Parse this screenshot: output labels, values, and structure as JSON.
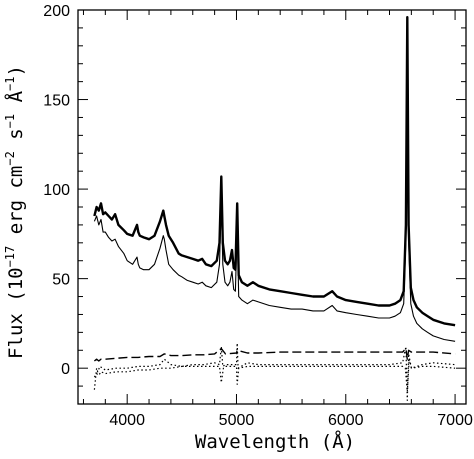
{
  "chart_data": {
    "type": "line",
    "xlabel": "Wavelength (Å)",
    "ylabel": "Flux (10",
    "ylabel_parts": [
      "Flux (10",
      "−17",
      " erg cm",
      "−2",
      " s",
      "−1",
      " Å",
      "−1",
      ")"
    ],
    "xlim": [
      3550,
      7100
    ],
    "ylim": [
      -20,
      200
    ],
    "xticks": [
      4000,
      5000,
      6000,
      7000
    ],
    "yticks": [
      0,
      50,
      100,
      150,
      200
    ],
    "grid": false,
    "series": [
      {
        "style": "solid-thick",
        "x": [
          3700,
          3720,
          3740,
          3760,
          3780,
          3800,
          3830,
          3860,
          3889,
          3920,
          3970,
          4000,
          4050,
          4090,
          4102,
          4115,
          4150,
          4200,
          4250,
          4300,
          4330,
          4340,
          4355,
          4380,
          4420,
          4471,
          4500,
          4550,
          4600,
          4650,
          4686,
          4720,
          4770,
          4820,
          4845,
          4861,
          4875,
          4895,
          4920,
          4940,
          4959,
          4975,
          4990,
          5007,
          5020,
          5050,
          5100,
          5150,
          5200,
          5300,
          5400,
          5500,
          5600,
          5700,
          5800,
          5876,
          5920,
          6000,
          6100,
          6200,
          6300,
          6400,
          6450,
          6500,
          6530,
          6550,
          6563,
          6575,
          6595,
          6620,
          6650,
          6700,
          6750,
          6800,
          6900,
          7000
        ],
        "y": [
          85,
          90,
          88,
          92,
          86,
          87,
          85,
          83,
          86,
          80,
          77,
          75,
          74,
          80,
          76,
          74,
          73,
          72,
          74,
          82,
          88,
          85,
          80,
          74,
          70,
          64,
          63,
          62,
          61,
          60,
          61,
          58,
          57,
          60,
          70,
          107,
          70,
          60,
          58,
          60,
          66,
          56,
          55,
          92,
          52,
          48,
          46,
          48,
          46,
          44,
          43,
          42,
          41,
          40,
          40,
          43,
          40,
          38,
          37,
          36,
          35,
          35,
          36,
          38,
          43,
          80,
          196,
          80,
          45,
          38,
          34,
          31,
          29,
          27,
          25,
          24
        ]
      },
      {
        "style": "solid-thin",
        "x": [
          3700,
          3720,
          3740,
          3760,
          3780,
          3800,
          3830,
          3860,
          3889,
          3920,
          3970,
          4000,
          4050,
          4090,
          4102,
          4115,
          4150,
          4200,
          4250,
          4300,
          4330,
          4340,
          4355,
          4380,
          4420,
          4471,
          4500,
          4550,
          4600,
          4650,
          4686,
          4720,
          4770,
          4820,
          4845,
          4861,
          4875,
          4895,
          4920,
          4940,
          4959,
          4975,
          4990,
          5007,
          5020,
          5050,
          5100,
          5150,
          5200,
          5300,
          5400,
          5500,
          5600,
          5700,
          5800,
          5876,
          5920,
          6000,
          6100,
          6200,
          6300,
          6400,
          6450,
          6500,
          6530,
          6550,
          6563,
          6575,
          6595,
          6620,
          6650,
          6700,
          6750,
          6800,
          6900,
          7000
        ],
        "y": [
          82,
          85,
          80,
          83,
          76,
          76,
          73,
          71,
          72,
          68,
          64,
          60,
          58,
          62,
          58,
          56,
          55,
          55,
          58,
          67,
          74,
          72,
          66,
          58,
          55,
          52,
          51,
          49,
          48,
          47,
          48,
          46,
          45,
          48,
          58,
          95,
          58,
          48,
          46,
          48,
          54,
          44,
          43,
          80,
          40,
          38,
          36,
          38,
          37,
          35,
          34,
          33,
          33,
          32,
          32,
          35,
          32,
          31,
          30,
          29,
          28,
          28,
          29,
          31,
          36,
          72,
          189,
          72,
          36,
          29,
          25,
          22,
          20,
          18,
          16,
          15
        ]
      },
      {
        "style": "dashed",
        "x": [
          3700,
          3720,
          3740,
          3760,
          3800,
          3900,
          4000,
          4100,
          4200,
          4300,
          4340,
          4400,
          4500,
          4600,
          4700,
          4800,
          4861,
          4900,
          5000,
          5007,
          5100,
          5200,
          5400,
          5600,
          5800,
          6000,
          6200,
          6400,
          6520,
          6550,
          6563,
          6575,
          6600,
          6700,
          6800,
          7000
        ],
        "y": [
          4,
          5,
          4,
          5,
          5,
          5.5,
          6,
          6,
          6.5,
          6.5,
          8,
          7,
          7,
          7.5,
          7.5,
          8,
          11,
          8,
          8.5,
          10,
          8.5,
          8.5,
          9,
          9,
          9,
          9,
          9,
          9,
          9,
          11,
          5,
          10,
          9,
          9,
          9,
          8
        ]
      },
      {
        "style": "dotted",
        "x": [
          3700,
          3720,
          3730,
          3750,
          3800,
          3900,
          4000,
          4100,
          4200,
          4300,
          4340,
          4400,
          4500,
          4600,
          4700,
          4800,
          4845,
          4861,
          4875,
          4900,
          5000,
          5007,
          5015,
          5100,
          5200,
          5400,
          5600,
          5800,
          6000,
          6200,
          6400,
          6520,
          6550,
          6563,
          6575,
          6600,
          6700,
          6800,
          7000
        ],
        "y": [
          -12,
          0,
          -2,
          1,
          -1,
          0,
          0,
          1,
          1,
          2,
          5,
          2,
          1,
          2,
          2,
          3,
          2,
          12,
          1,
          2,
          2,
          14,
          0,
          3,
          2,
          2,
          2,
          2,
          2,
          2,
          2,
          3,
          12,
          -18,
          8,
          0,
          2,
          3,
          2
        ]
      },
      {
        "style": "dotted",
        "x": [
          3700,
          3720,
          3740,
          3760,
          3800,
          3900,
          4000,
          4100,
          4200,
          4300,
          4400,
          4500,
          4600,
          4700,
          4800,
          4845,
          4861,
          4880,
          4900,
          5000,
          5007,
          5020,
          5100,
          5200,
          5400,
          5600,
          5800,
          6000,
          6200,
          6400,
          6520,
          6545,
          6563,
          6580,
          6600,
          6700,
          6800,
          7000
        ],
        "y": [
          -5,
          -3,
          -4,
          -2,
          -3,
          -2,
          -2,
          -1,
          -1,
          0,
          0,
          1,
          1,
          1,
          1,
          1,
          -8,
          0,
          1,
          1,
          -9,
          0,
          1,
          1,
          1,
          1,
          1,
          1,
          1,
          1,
          1,
          0,
          -13,
          5,
          0,
          1,
          1,
          0
        ]
      }
    ]
  }
}
